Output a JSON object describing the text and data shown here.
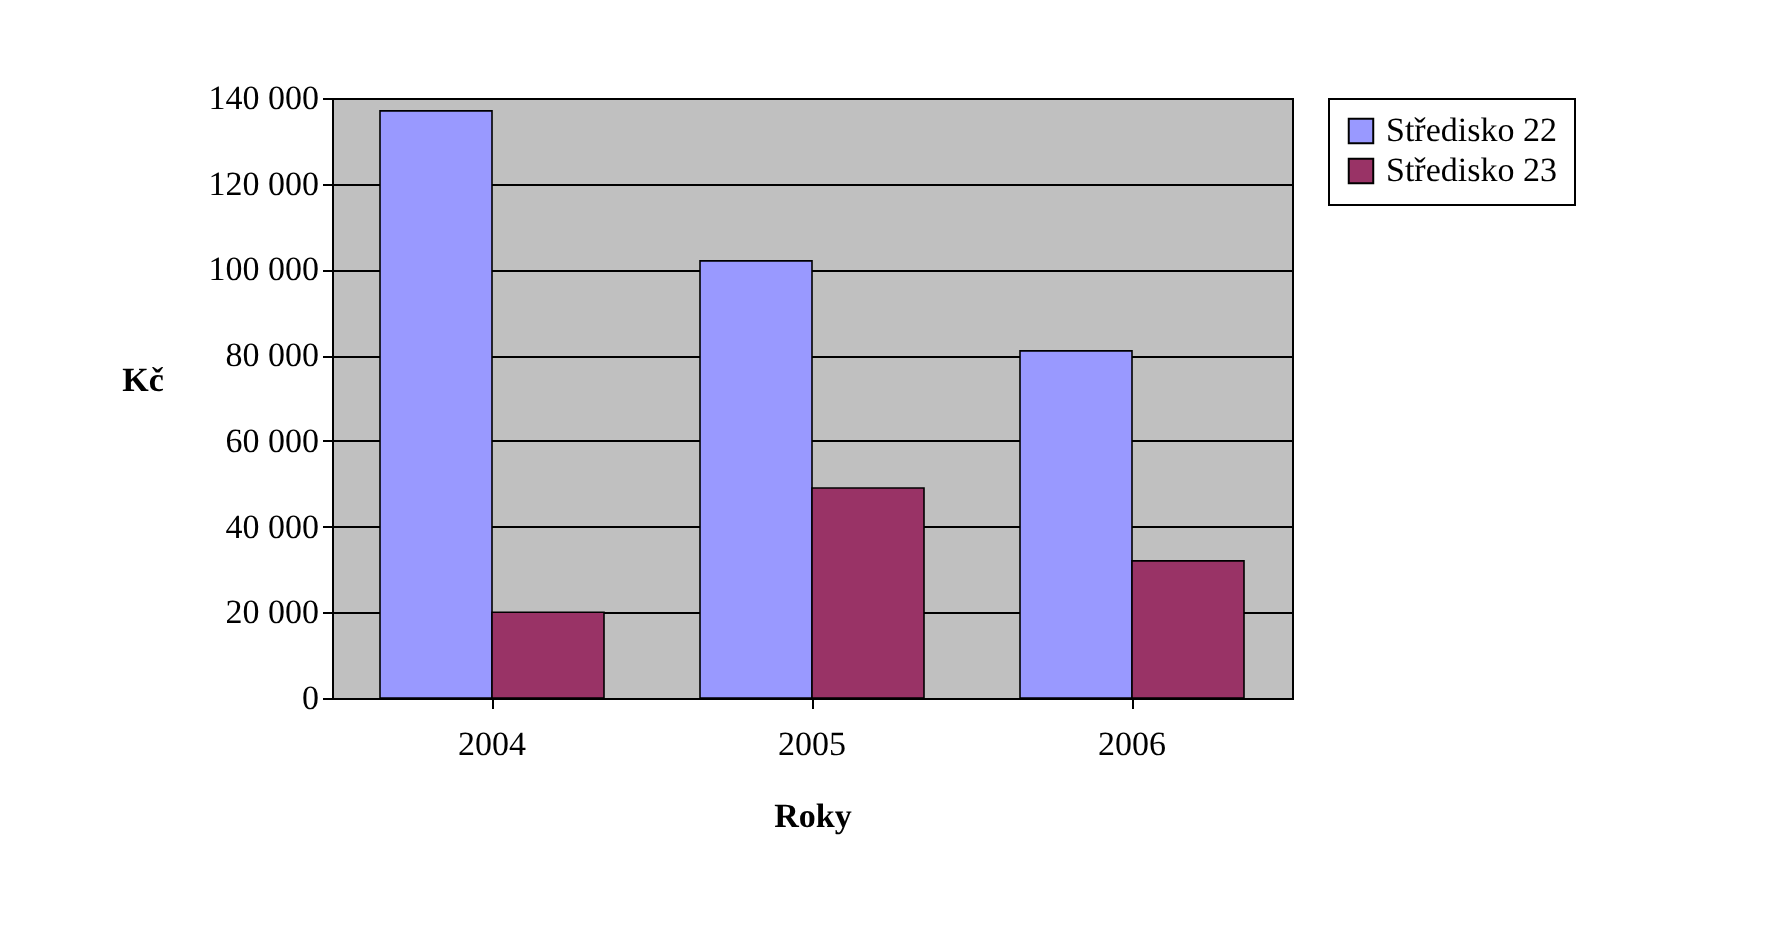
{
  "chart_data": {
    "type": "bar",
    "xlabel": "Roky",
    "ylabel": "Kč",
    "categories": [
      "2004",
      "2005",
      "2006"
    ],
    "series": [
      {
        "name": "Středisko 22",
        "color": "#9999ff",
        "values": [
          137000,
          102000,
          81000
        ]
      },
      {
        "name": "Středisko 23",
        "color": "#993366",
        "values": [
          20000,
          49000,
          32000
        ]
      }
    ],
    "ylim": [
      0,
      140000
    ],
    "yticks": [
      0,
      {
        "value": 20000,
        "label": "20 000"
      },
      {
        "value": 40000,
        "label": "40 000"
      },
      {
        "value": 60000,
        "label": "60 000"
      },
      {
        "value": 80000,
        "label": "80 000"
      },
      {
        "value": 100000,
        "label": "100 000"
      },
      {
        "value": 120000,
        "label": "120 000"
      },
      {
        "value": 140000,
        "label": "140 000"
      }
    ],
    "grid": "y",
    "legend": "right"
  }
}
